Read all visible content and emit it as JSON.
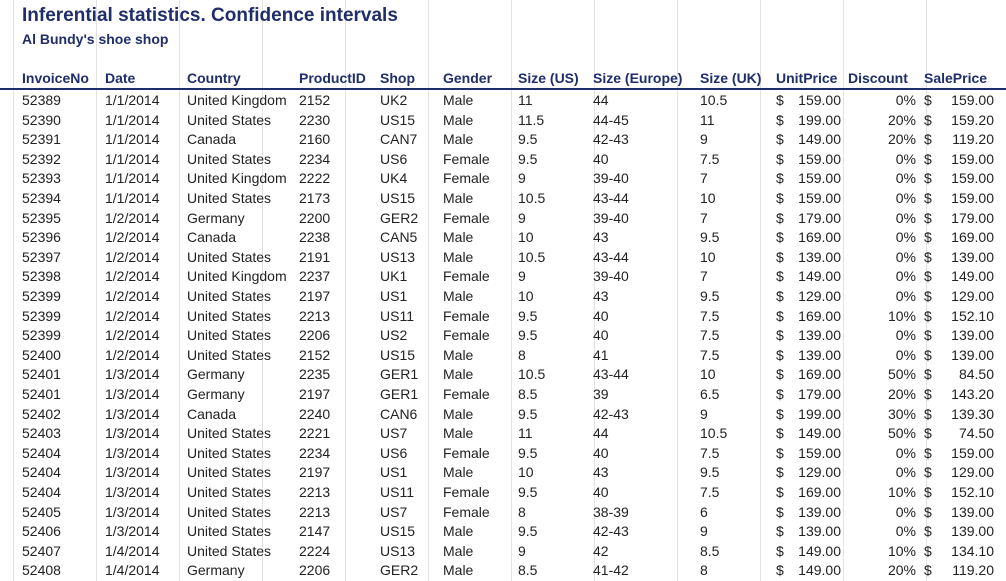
{
  "title": "Inferential statistics. Confidence intervals",
  "subtitle": "Al Bundy's shoe shop",
  "headers": [
    "InvoiceNo",
    "Date",
    "Country",
    "ProductID",
    "Shop",
    "Gender",
    "Size (US)",
    "Size (Europe)",
    "Size (UK)",
    "UnitPrice",
    "Discount",
    "SalePrice"
  ],
  "currency_symbol": "$",
  "rows": [
    [
      "52389",
      "1/1/2014",
      "United Kingdom",
      "2152",
      "UK2",
      "Male",
      "11",
      "44",
      "10.5",
      "159.00",
      "0%",
      "159.00"
    ],
    [
      "52390",
      "1/1/2014",
      "United States",
      "2230",
      "US15",
      "Male",
      "11.5",
      "44-45",
      "11",
      "199.00",
      "20%",
      "159.20"
    ],
    [
      "52391",
      "1/1/2014",
      "Canada",
      "2160",
      "CAN7",
      "Male",
      "9.5",
      "42-43",
      "9",
      "149.00",
      "20%",
      "119.20"
    ],
    [
      "52392",
      "1/1/2014",
      "United States",
      "2234",
      "US6",
      "Female",
      "9.5",
      "40",
      "7.5",
      "159.00",
      "0%",
      "159.00"
    ],
    [
      "52393",
      "1/1/2014",
      "United Kingdom",
      "2222",
      "UK4",
      "Female",
      "9",
      "39-40",
      "7",
      "159.00",
      "0%",
      "159.00"
    ],
    [
      "52394",
      "1/1/2014",
      "United States",
      "2173",
      "US15",
      "Male",
      "10.5",
      "43-44",
      "10",
      "159.00",
      "0%",
      "159.00"
    ],
    [
      "52395",
      "1/2/2014",
      "Germany",
      "2200",
      "GER2",
      "Female",
      "9",
      "39-40",
      "7",
      "179.00",
      "0%",
      "179.00"
    ],
    [
      "52396",
      "1/2/2014",
      "Canada",
      "2238",
      "CAN5",
      "Male",
      "10",
      "43",
      "9.5",
      "169.00",
      "0%",
      "169.00"
    ],
    [
      "52397",
      "1/2/2014",
      "United States",
      "2191",
      "US13",
      "Male",
      "10.5",
      "43-44",
      "10",
      "139.00",
      "0%",
      "139.00"
    ],
    [
      "52398",
      "1/2/2014",
      "United Kingdom",
      "2237",
      "UK1",
      "Female",
      "9",
      "39-40",
      "7",
      "149.00",
      "0%",
      "149.00"
    ],
    [
      "52399",
      "1/2/2014",
      "United States",
      "2197",
      "US1",
      "Male",
      "10",
      "43",
      "9.5",
      "129.00",
      "0%",
      "129.00"
    ],
    [
      "52399",
      "1/2/2014",
      "United States",
      "2213",
      "US11",
      "Female",
      "9.5",
      "40",
      "7.5",
      "169.00",
      "10%",
      "152.10"
    ],
    [
      "52399",
      "1/2/2014",
      "United States",
      "2206",
      "US2",
      "Female",
      "9.5",
      "40",
      "7.5",
      "139.00",
      "0%",
      "139.00"
    ],
    [
      "52400",
      "1/2/2014",
      "United States",
      "2152",
      "US15",
      "Male",
      "8",
      "41",
      "7.5",
      "139.00",
      "0%",
      "139.00"
    ],
    [
      "52401",
      "1/3/2014",
      "Germany",
      "2235",
      "GER1",
      "Male",
      "10.5",
      "43-44",
      "10",
      "169.00",
      "50%",
      "84.50"
    ],
    [
      "52401",
      "1/3/2014",
      "Germany",
      "2197",
      "GER1",
      "Female",
      "8.5",
      "39",
      "6.5",
      "179.00",
      "20%",
      "143.20"
    ],
    [
      "52402",
      "1/3/2014",
      "Canada",
      "2240",
      "CAN6",
      "Male",
      "9.5",
      "42-43",
      "9",
      "199.00",
      "30%",
      "139.30"
    ],
    [
      "52403",
      "1/3/2014",
      "United States",
      "2221",
      "US7",
      "Male",
      "11",
      "44",
      "10.5",
      "149.00",
      "50%",
      "74.50"
    ],
    [
      "52404",
      "1/3/2014",
      "United States",
      "2234",
      "US6",
      "Female",
      "9.5",
      "40",
      "7.5",
      "159.00",
      "0%",
      "159.00"
    ],
    [
      "52404",
      "1/3/2014",
      "United States",
      "2197",
      "US1",
      "Male",
      "10",
      "43",
      "9.5",
      "129.00",
      "0%",
      "129.00"
    ],
    [
      "52404",
      "1/3/2014",
      "United States",
      "2213",
      "US11",
      "Female",
      "9.5",
      "40",
      "7.5",
      "169.00",
      "10%",
      "152.10"
    ],
    [
      "52405",
      "1/3/2014",
      "United States",
      "2213",
      "US7",
      "Female",
      "8",
      "38-39",
      "6",
      "139.00",
      "0%",
      "139.00"
    ],
    [
      "52406",
      "1/3/2014",
      "United States",
      "2147",
      "US15",
      "Male",
      "9.5",
      "42-43",
      "9",
      "139.00",
      "0%",
      "139.00"
    ],
    [
      "52407",
      "1/4/2014",
      "United States",
      "2224",
      "US13",
      "Male",
      "9",
      "42",
      "8.5",
      "149.00",
      "10%",
      "134.10"
    ],
    [
      "52408",
      "1/4/2014",
      "Germany",
      "2206",
      "GER2",
      "Male",
      "8.5",
      "41-42",
      "8",
      "149.00",
      "20%",
      "119.20"
    ]
  ]
}
